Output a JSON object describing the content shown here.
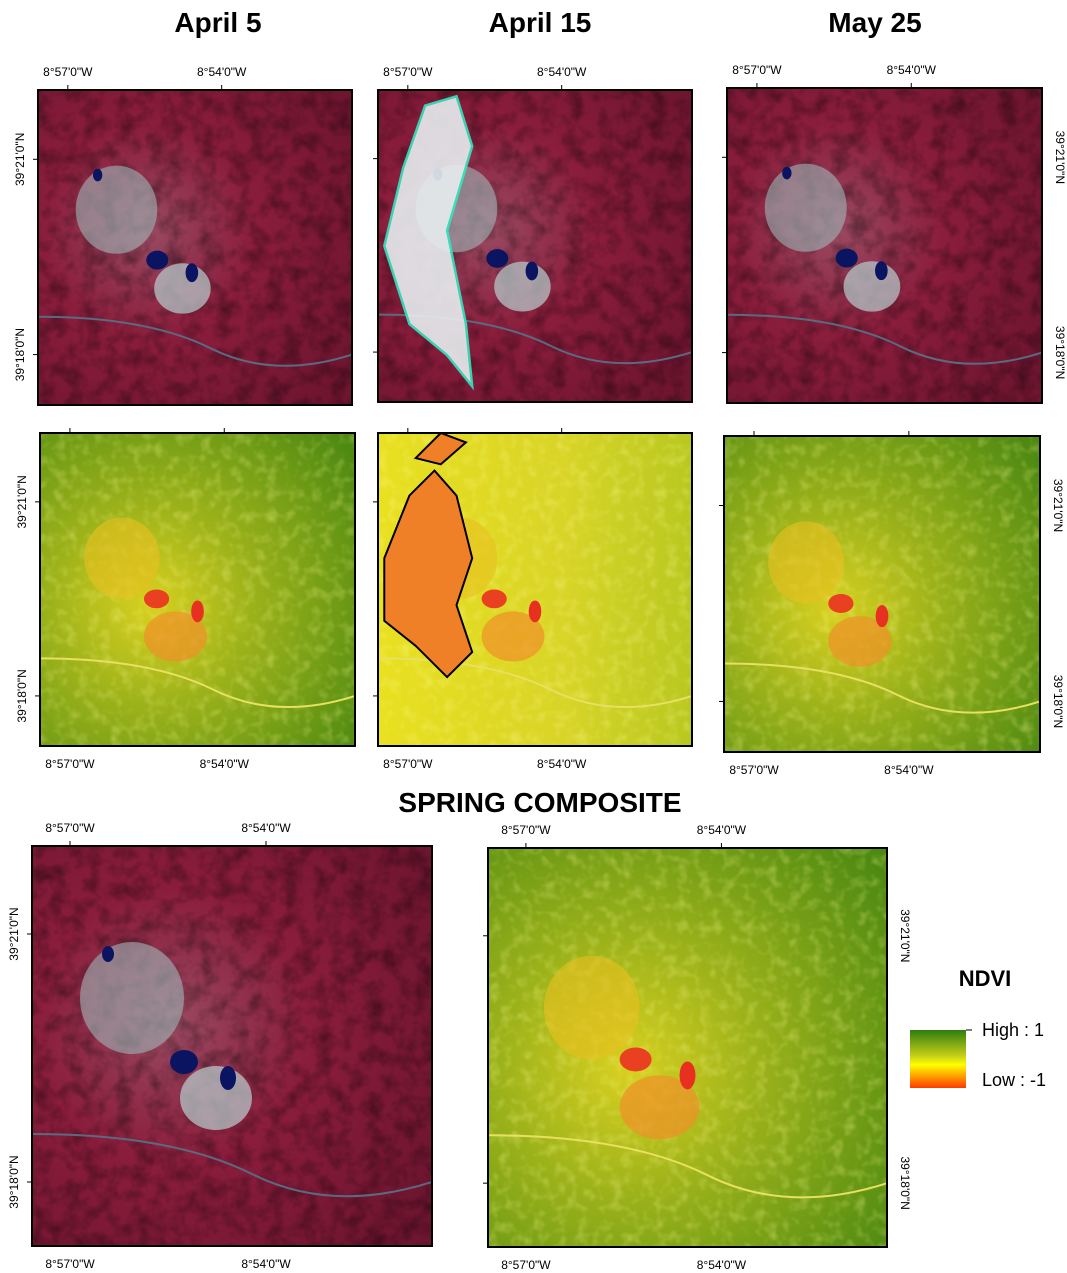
{
  "titles": [
    "April 5",
    "April 15",
    "May 25"
  ],
  "composite_title": "SPRING COMPOSITE",
  "graticule": {
    "longitudes": [
      "8°57'0\"W",
      "8°54'0\"W"
    ],
    "latitudes": [
      "39°21'0\"N",
      "39°18'0\"N"
    ]
  },
  "legend": {
    "title": "NDVI",
    "high": "High : 1",
    "low": "Low : -1"
  }
}
